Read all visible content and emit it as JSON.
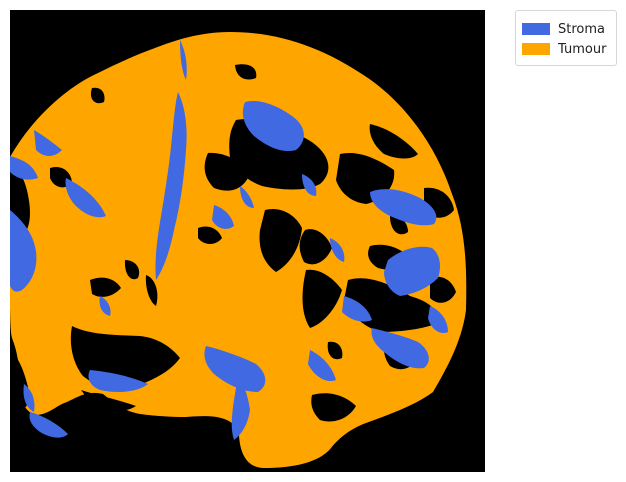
{
  "legend": {
    "items": [
      {
        "label": "Stroma",
        "color": "#4169E1"
      },
      {
        "label": "Tumour",
        "color": "#FFA500"
      }
    ]
  },
  "colors": {
    "background": "#000000",
    "stroma": "#4169E1",
    "tumour": "#FFA500"
  }
}
